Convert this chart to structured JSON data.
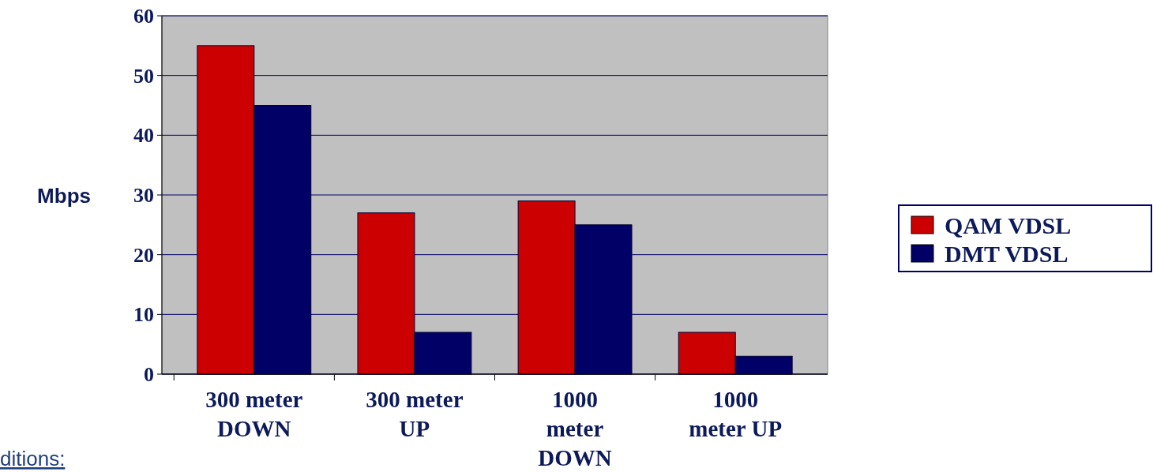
{
  "chart_data": {
    "type": "bar",
    "ylabel": "Mbps",
    "categories": [
      "300 meter DOWN",
      "300 meter UP",
      "1000 meter DOWN",
      "1000 meter UP"
    ],
    "series": [
      {
        "name": "QAM VDSL",
        "color": "#cc0000",
        "values": [
          55,
          27,
          29,
          7
        ]
      },
      {
        "name": "DMT VDSL",
        "color": "#000066",
        "values": [
          45,
          7,
          25,
          3
        ]
      }
    ],
    "ylim": [
      0,
      60
    ],
    "yticks": [
      0,
      10,
      20,
      30,
      40,
      50,
      60
    ],
    "grid": "y",
    "legend": "right",
    "annotations": [
      "ditions:"
    ]
  }
}
